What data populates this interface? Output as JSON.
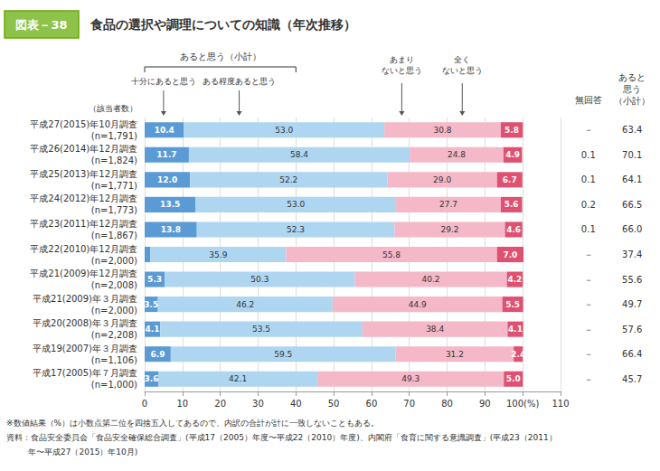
{
  "chart_data": {
    "type": "bar",
    "orientation": "horizontal",
    "stacked": true,
    "data_labels": true,
    "grid": true,
    "title_box": "図表－38",
    "title": "食品の選択や調理についての知識（年次推移）",
    "category_header": "（該当者数）",
    "categories": [
      "平成27(2015)年10月調査\n(n=1,791)",
      "平成26(2014)年12月調査\n(n=1,824)",
      "平成25(2013)年12月調査\n(n=1,771)",
      "平成24(2012)年12月調査\n(n=1,773)",
      "平成23(2011)年12月調査\n(n=1,867)",
      "平成22(2010)年12月調査\n(n=2,000)",
      "平成21(2009)年12月調査\n(n=2,008)",
      "平成21(2009)年３月調査\n(n=2,000)",
      "平成20(2008)年３月調査\n(n=2,208)",
      "平成19(2007)年３月調査\n(n=1,106)",
      "平成17(2005)年７月調査\n(n=1,000)"
    ],
    "series": [
      {
        "name": "十分にあると思う",
        "color": "#5b9bd5",
        "values": [
          10.4,
          11.7,
          12.0,
          13.5,
          13.8,
          1.5,
          5.3,
          3.5,
          4.1,
          6.9,
          3.6
        ],
        "value_labels": [
          "10.4",
          "11.7",
          "12.0",
          "13.5",
          "13.8",
          null,
          "5.3",
          "3.5",
          "4.1",
          "6.9",
          "3.6"
        ]
      },
      {
        "name": "ある程度あると思う",
        "color": "#aed6f1",
        "values": [
          53.0,
          58.4,
          52.2,
          53.0,
          52.3,
          35.9,
          50.3,
          46.2,
          53.5,
          59.5,
          42.1
        ],
        "value_labels": [
          "53.0",
          "58.4",
          "52.2",
          "53.0",
          "52.3",
          "35.9",
          "50.3",
          "46.2",
          "53.5",
          "59.5",
          "42.1"
        ]
      },
      {
        "name": "あまり\nないと思う",
        "color": "#f4b8c8",
        "values": [
          30.8,
          24.8,
          29.0,
          27.7,
          29.2,
          55.8,
          40.2,
          44.9,
          38.4,
          31.2,
          49.3
        ],
        "value_labels": [
          "30.8",
          "24.8",
          "29.0",
          "27.7",
          "29.2",
          "55.8",
          "40.2",
          "44.9",
          "38.4",
          "31.2",
          "49.3"
        ]
      },
      {
        "name": "全く\nないと思う",
        "color": "#e05070",
        "values": [
          5.8,
          4.9,
          6.7,
          5.6,
          4.6,
          7.0,
          4.2,
          5.5,
          4.1,
          2.4,
          5.0
        ],
        "value_labels": [
          "5.8",
          "4.9",
          "6.7",
          "5.6",
          "4.6",
          "7.0",
          "4.2",
          "5.5",
          "4.1",
          "2.4",
          "5.0"
        ]
      },
      {
        "name": "無回答",
        "color": "#bbbbbb",
        "data_labels": false,
        "values": [
          0.0,
          0.1,
          0.1,
          0.2,
          0.1,
          0.0,
          0.0,
          0.0,
          0.0,
          0.0,
          0.0
        ]
      }
    ],
    "bracket_label": "あると思う（小計）",
    "columns": [
      {
        "name": "無回答",
        "values": [
          0.0,
          0.1,
          0.1,
          0.2,
          0.1,
          0.0,
          0.0,
          0.0,
          0.0,
          0.0,
          0.0
        ],
        "value_labels": [
          "－",
          "0.1",
          "0.1",
          "0.2",
          "0.1",
          "－",
          "－",
          "－",
          "－",
          "－",
          "－"
        ]
      },
      {
        "name": "あると\n思う\n（小計）",
        "values": [
          63.4,
          70.1,
          64.1,
          66.5,
          66.0,
          37.4,
          55.6,
          49.7,
          57.6,
          66.4,
          45.7
        ],
        "value_labels": [
          "63.4",
          "70.1",
          "64.1",
          "66.5",
          "66.0",
          "37.4",
          "55.6",
          "49.7",
          "57.6",
          "66.4",
          "45.7"
        ]
      }
    ],
    "xlim": [
      0,
      110
    ],
    "xticks": [
      0,
      10,
      20,
      30,
      40,
      50,
      60,
      70,
      80,
      90,
      {
        "value": 100,
        "label": "100(%)"
      },
      110
    ],
    "footnotes": [
      "※数値結果（%）は小数点第二位を四捨五入してあるので、内訳の合計が計に一致しないこともある。",
      "資料：食品安全委員会「食品安全確保総合調査」(平成17（2005）年度〜平成22（2010）年度)、内閣府「食育に関する意識調査」(平成23（2011）",
      "　年〜平成27（2015）年10月)"
    ]
  }
}
